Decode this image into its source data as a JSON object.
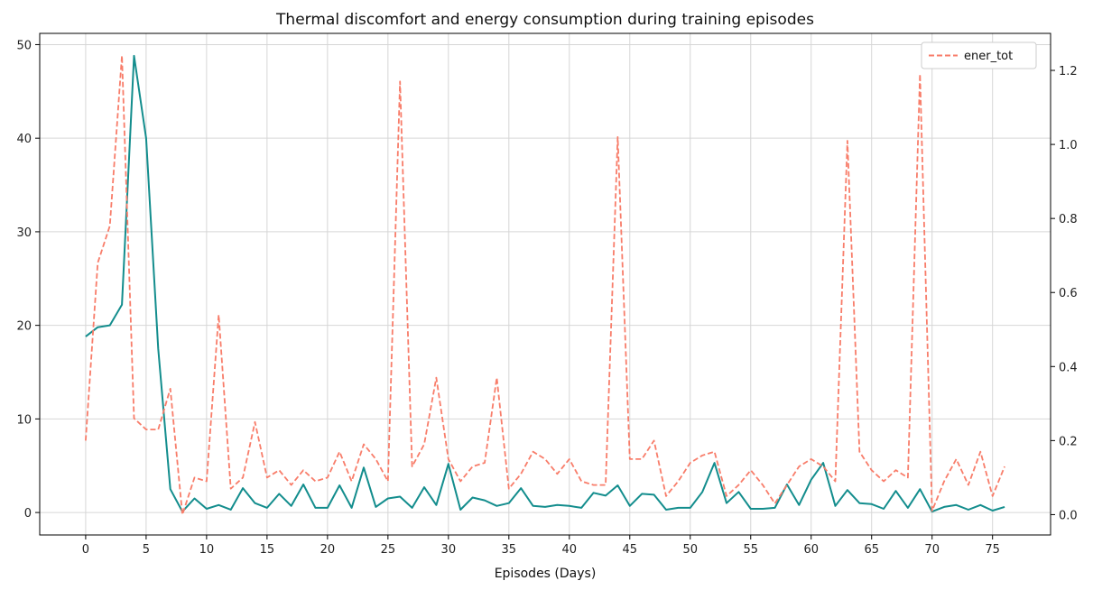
{
  "chart_data": {
    "type": "line",
    "title": "Thermal discomfort and energy consumption during training episodes",
    "xlabel": "Episodes (Days)",
    "ylabel_left": "",
    "ylabel_right": "",
    "x_ticks": [
      0,
      5,
      10,
      15,
      20,
      25,
      30,
      35,
      40,
      45,
      50,
      55,
      60,
      65,
      70,
      75
    ],
    "x_lim": [
      -3.8,
      79.8
    ],
    "y_left_lim": [
      -2.4,
      51.2
    ],
    "y_left_ticks": [
      0,
      10,
      20,
      30,
      40,
      50
    ],
    "y_right_lim": [
      -0.055,
      1.3
    ],
    "y_right_ticks": [
      0.0,
      0.2,
      0.4,
      0.6,
      0.8,
      1.0,
      1.2
    ],
    "right_tick_labels": [
      "0.0",
      "0.2",
      "0.4",
      "0.6",
      "0.8",
      "1.0",
      "1.2"
    ],
    "grid": true,
    "legend_position": "top-right",
    "legend": [
      "ener_tot"
    ],
    "x": [
      0,
      1,
      2,
      3,
      4,
      5,
      6,
      7,
      8,
      9,
      10,
      11,
      12,
      13,
      14,
      15,
      16,
      17,
      18,
      19,
      20,
      21,
      22,
      23,
      24,
      25,
      26,
      27,
      28,
      29,
      30,
      31,
      32,
      33,
      34,
      35,
      36,
      37,
      38,
      39,
      40,
      41,
      42,
      43,
      44,
      45,
      46,
      47,
      48,
      49,
      50,
      51,
      52,
      53,
      54,
      55,
      56,
      57,
      58,
      59,
      60,
      61,
      62,
      63,
      64,
      65,
      66,
      67,
      68,
      69,
      70,
      71,
      72,
      73,
      74,
      75,
      76
    ],
    "series": [
      {
        "axis": "left",
        "color": "#138d8d",
        "style": "solid",
        "values": [
          18.8,
          19.8,
          20.0,
          22.2,
          48.8,
          40.0,
          17.5,
          2.5,
          0.1,
          1.5,
          0.4,
          0.8,
          0.3,
          2.6,
          1.0,
          0.5,
          2.0,
          0.7,
          3.0,
          0.5,
          0.5,
          2.9,
          0.5,
          4.8,
          0.6,
          1.5,
          1.7,
          0.5,
          2.7,
          0.8,
          5.2,
          0.3,
          1.6,
          1.3,
          0.7,
          1.0,
          2.6,
          0.7,
          0.6,
          0.8,
          0.7,
          0.5,
          2.1,
          1.8,
          2.9,
          0.7,
          2.0,
          1.9,
          0.3,
          0.5,
          0.5,
          2.2,
          5.3,
          1.0,
          2.2,
          0.4,
          0.4,
          0.5,
          3.0,
          0.8,
          3.5,
          5.3,
          0.7,
          2.4,
          1.0,
          0.9,
          0.4,
          2.3,
          0.5,
          2.5,
          0.1,
          0.6,
          0.8,
          0.3,
          0.8,
          0.2,
          0.6
        ]
      },
      {
        "name": "ener_tot",
        "axis": "right",
        "color": "#f87d6a",
        "style": "dashed",
        "values": [
          0.2,
          0.68,
          0.78,
          1.24,
          0.26,
          0.23,
          0.23,
          0.34,
          0.0,
          0.1,
          0.09,
          0.54,
          0.07,
          0.1,
          0.25,
          0.1,
          0.12,
          0.08,
          0.12,
          0.09,
          0.1,
          0.17,
          0.09,
          0.19,
          0.15,
          0.09,
          1.17,
          0.13,
          0.19,
          0.37,
          0.15,
          0.09,
          0.13,
          0.14,
          0.37,
          0.07,
          0.11,
          0.17,
          0.15,
          0.11,
          0.15,
          0.09,
          0.08,
          0.08,
          1.02,
          0.15,
          0.15,
          0.2,
          0.05,
          0.09,
          0.14,
          0.16,
          0.17,
          0.05,
          0.08,
          0.12,
          0.08,
          0.03,
          0.08,
          0.13,
          0.15,
          0.13,
          0.09,
          1.01,
          0.17,
          0.12,
          0.09,
          0.12,
          0.1,
          1.19,
          0.01,
          0.09,
          0.15,
          0.08,
          0.17,
          0.05,
          0.13
        ]
      }
    ]
  },
  "colors": {
    "grid": "#d6d6d6",
    "frame": "#000000"
  }
}
